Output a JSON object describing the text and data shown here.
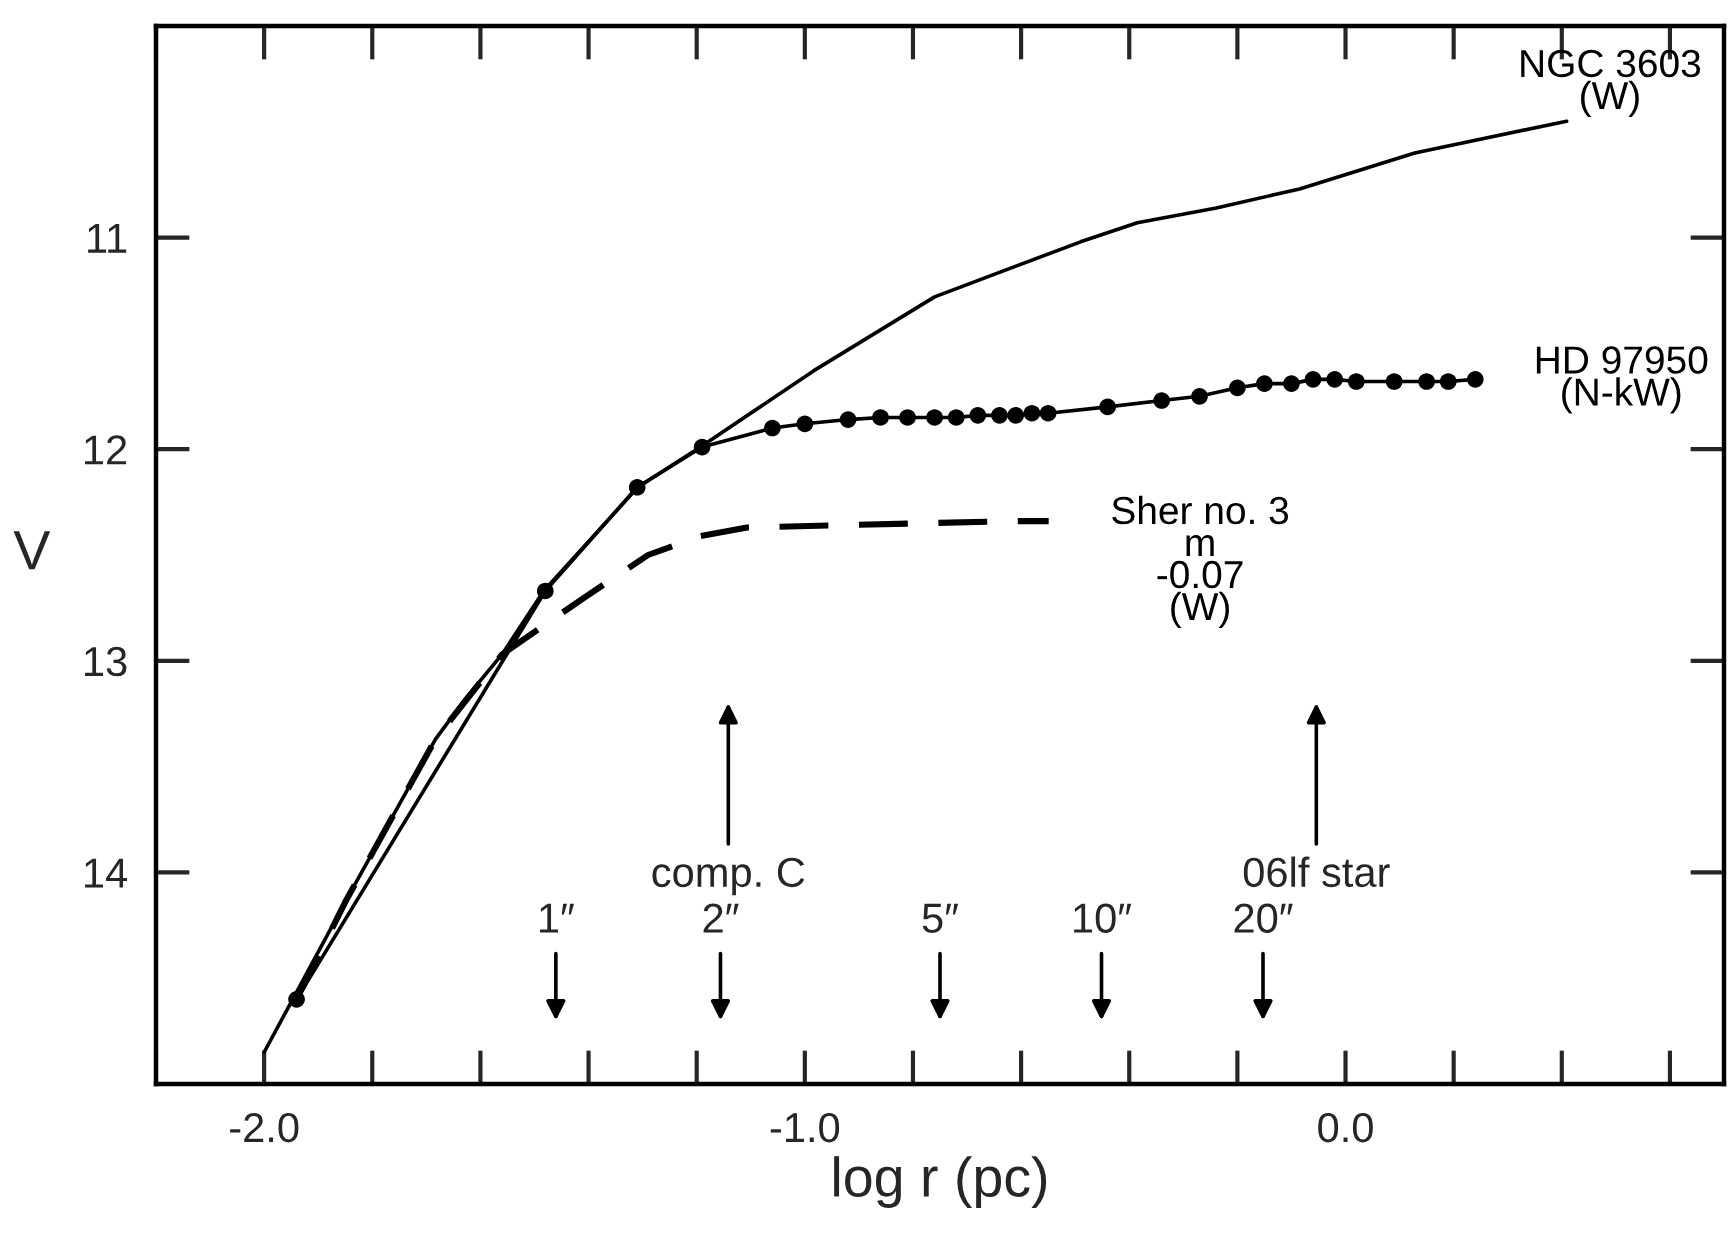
{
  "chart_data": {
    "type": "line",
    "xlabel": "log r (pc)",
    "ylabel": "V",
    "xlim": [
      -2.2,
      0.7
    ],
    "ylim": [
      15.0,
      10.0
    ],
    "xticks": [
      {
        "value": -2.0,
        "label": "-2.0"
      },
      {
        "value": -1.0,
        "label": "-1.0"
      },
      {
        "value": 0.0,
        "label": "0.0"
      }
    ],
    "yticks": [
      11,
      12,
      13,
      14
    ],
    "grid": false,
    "legend": false,
    "series": [
      {
        "name": "NGC 3603\n(W)",
        "color": "#000000",
        "marker": "none",
        "line_style": "solid",
        "x": [
          -2.0,
          -1.848,
          -1.683,
          -1.628,
          -1.56,
          -1.483,
          -1.309,
          -1.193,
          -0.984,
          -0.76,
          -0.49,
          -0.385,
          -0.239,
          -0.085,
          0.128,
          0.409
        ],
        "values": [
          14.85,
          14.13,
          13.37,
          13.18,
          12.97,
          12.67,
          12.18,
          11.99,
          11.63,
          11.28,
          11.02,
          10.93,
          10.86,
          10.77,
          10.6,
          10.45
        ]
      },
      {
        "name": "HD 97950\n(N-kW)",
        "color": "#000000",
        "marker": "circle",
        "line_style": "solid",
        "x": [
          -1.94,
          -1.48,
          -1.31,
          -1.19,
          -1.06,
          -1.0,
          -0.92,
          -0.86,
          -0.81,
          -0.76,
          -0.72,
          -0.68,
          -0.64,
          -0.61,
          -0.58,
          -0.55,
          -0.44,
          -0.34,
          -0.27,
          -0.2,
          -0.15,
          -0.1,
          -0.06,
          -0.02,
          0.02,
          0.09,
          0.15,
          0.19,
          0.24
        ],
        "values": [
          14.6,
          12.67,
          12.18,
          11.99,
          11.9,
          11.88,
          11.86,
          11.85,
          11.85,
          11.85,
          11.85,
          11.84,
          11.84,
          11.84,
          11.83,
          11.83,
          11.8,
          11.77,
          11.75,
          11.71,
          11.69,
          11.69,
          11.67,
          11.67,
          11.68,
          11.68,
          11.68,
          11.68,
          11.67
        ]
      },
      {
        "name": "Sher no. 3\nm\n-0.07\n(W)",
        "color": "#000000",
        "marker": "none",
        "line_style": "dashed",
        "x": [
          -1.94,
          -1.848,
          -1.683,
          -1.56,
          -1.413,
          -1.29,
          -1.193,
          -1.107,
          -0.617,
          -0.549
        ],
        "values": [
          14.6,
          14.13,
          13.37,
          12.97,
          12.71,
          12.5,
          12.41,
          12.37,
          12.34,
          12.34
        ]
      }
    ],
    "annotations": [
      "comp. C",
      "06lf star",
      "1″",
      "2″",
      "5″",
      "10″",
      "20″"
    ]
  }
}
